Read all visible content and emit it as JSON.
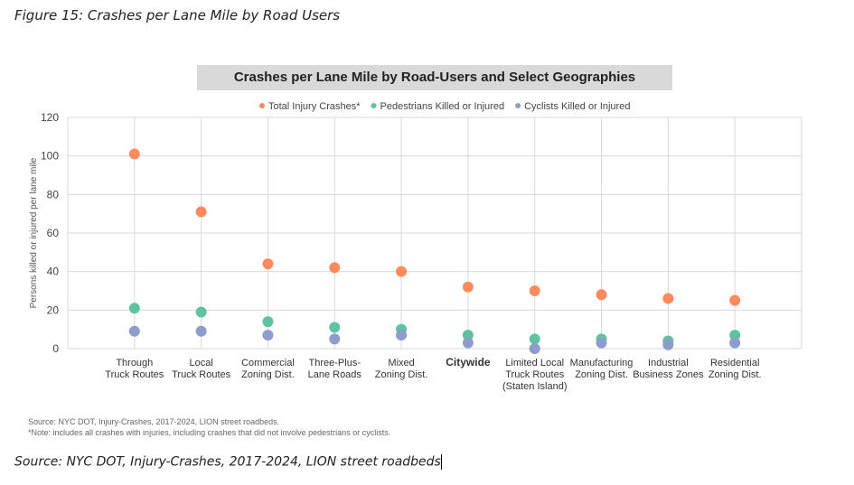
{
  "figure_caption": "Figure 15: Crashes per Lane Mile by Road Users",
  "source_caption": "Source: NYC DOT, Injury-Crashes, 2017-2024, LION street roadbeds",
  "notes": [
    "Source: NYC DOT, Injury-Crashes, 2017-2024, LION street roadbeds.",
    "*Note: includes all crashes with injuries, including crashes that did not involve pedestrians or cyclists."
  ],
  "chart_data": {
    "type": "scatter",
    "title": "Crashes per Lane Mile by Road-Users and Select Geographies",
    "ylabel": "Persons killed or injured per lane mile",
    "xlabel": "",
    "ylim": [
      0,
      120
    ],
    "yticks": [
      0,
      20,
      40,
      60,
      80,
      100,
      120
    ],
    "grid": true,
    "legend_position": "top",
    "categories": [
      [
        "Through",
        "Truck Routes"
      ],
      [
        "Local",
        "Truck Routes"
      ],
      [
        "Commercial",
        "Zoning Dist."
      ],
      [
        "Three-Plus-",
        "Lane Roads"
      ],
      [
        "Mixed",
        "Zoning Dist."
      ],
      [
        "Citywide"
      ],
      [
        "Limited Local",
        "Truck Routes",
        "(Staten Island)"
      ],
      [
        "Manufacturing",
        "Zoning Dist."
      ],
      [
        "Industrial",
        "Business Zones"
      ],
      [
        "Residential",
        "Zoning Dist."
      ]
    ],
    "bold_category": "Citywide",
    "series": [
      {
        "name": "Total Injury Crashes*",
        "color": "#ff8a5b",
        "values": [
          101,
          71,
          44,
          42,
          40,
          32,
          30,
          28,
          26,
          25
        ]
      },
      {
        "name": "Pedestrians Killed or Injured",
        "color": "#5fc2a0",
        "values": [
          21,
          19,
          14,
          11,
          10,
          7,
          5,
          5,
          4,
          7
        ]
      },
      {
        "name": "Cyclists Killed or Injured",
        "color": "#8e9ccb",
        "values": [
          9,
          9,
          7,
          5,
          7,
          3,
          0,
          3,
          2,
          3
        ]
      }
    ]
  }
}
